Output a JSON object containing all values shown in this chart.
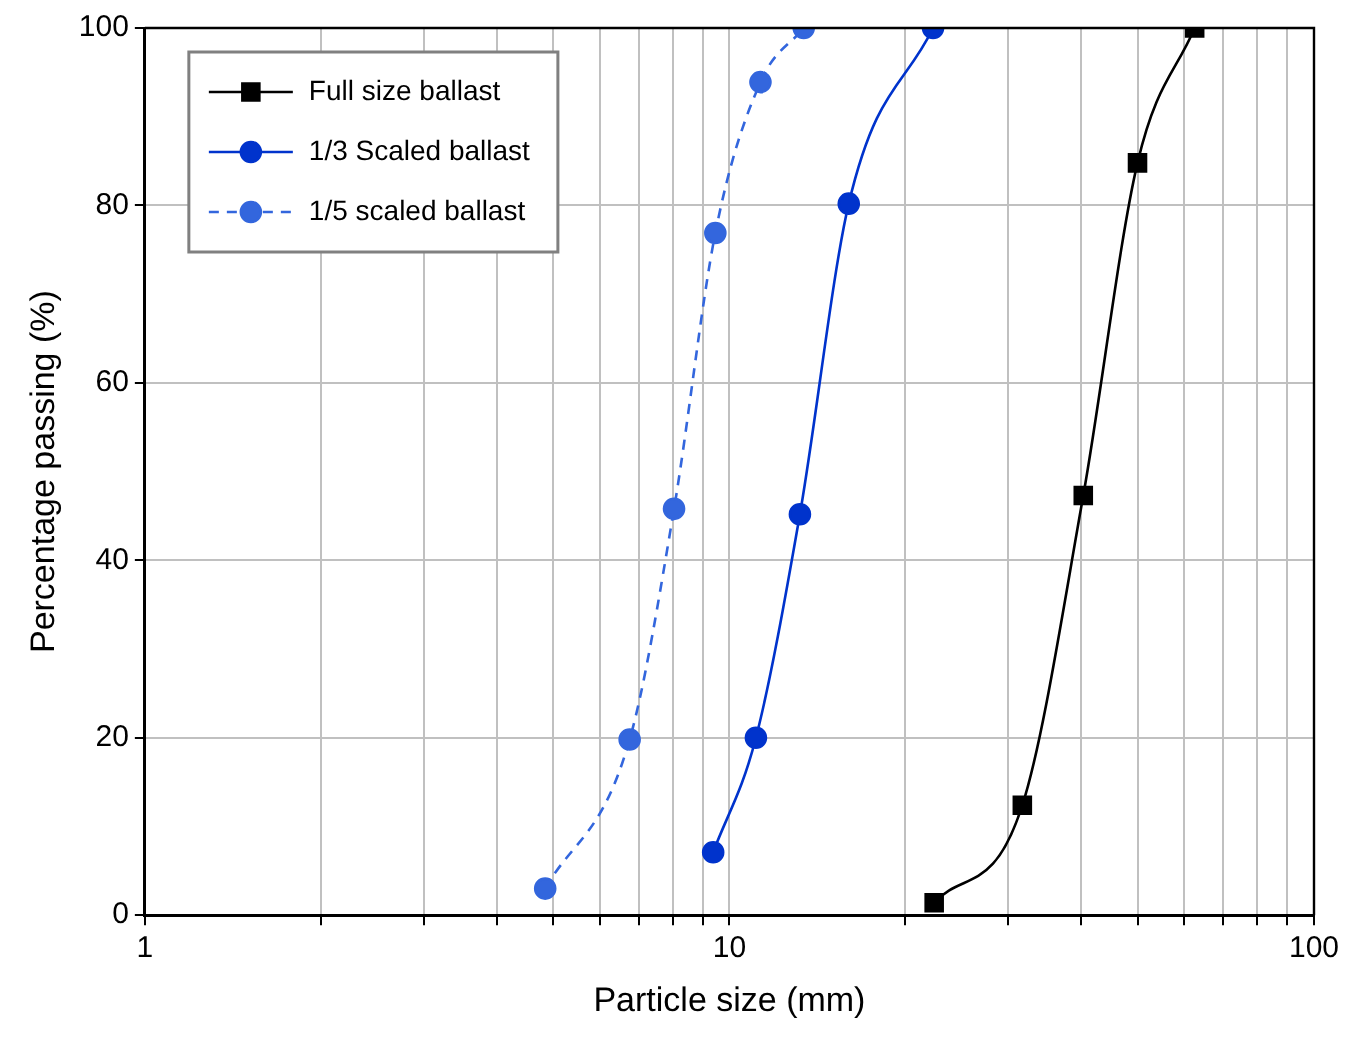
{
  "chart_data": {
    "type": "line",
    "xlabel": "Particle size (mm)",
    "ylabel": "Percentage passing (%)",
    "log": "x",
    "xlim": [
      1,
      100
    ],
    "ylim": [
      0,
      100
    ],
    "xticks": [
      1,
      {
        "value": 2,
        "label": null
      },
      {
        "value": 3,
        "label": null
      },
      {
        "value": 4,
        "label": null
      },
      {
        "value": 5,
        "label": null
      },
      {
        "value": 6,
        "label": null
      },
      {
        "value": 7,
        "label": null
      },
      {
        "value": 8,
        "label": null
      },
      {
        "value": 9,
        "label": null
      },
      10,
      {
        "value": 20,
        "label": null
      },
      {
        "value": 30,
        "label": null
      },
      {
        "value": 40,
        "label": null
      },
      {
        "value": 50,
        "label": null
      },
      {
        "value": 60,
        "label": null
      },
      {
        "value": 70,
        "label": null
      },
      {
        "value": 80,
        "label": null
      },
      {
        "value": 90,
        "label": null
      },
      100
    ],
    "yticks": [
      0,
      20,
      40,
      60,
      80,
      100
    ],
    "grid": true,
    "legend": "top left",
    "series": [
      {
        "name": "Full size ballast",
        "color": "#000000",
        "marker": "square",
        "line_style": "solid",
        "x": [
          22.4,
          31.7,
          40.3,
          49.9,
          62.5
        ],
        "values": [
          1.4,
          12.4,
          47.3,
          84.8,
          100
        ]
      },
      {
        "name": "1/3 Scaled ballast",
        "color": "#0033cc",
        "marker": "circle",
        "line_style": "solid",
        "x": [
          9.38,
          11.1,
          13.2,
          16.0,
          22.3
        ],
        "values": [
          7.1,
          20,
          45.2,
          80.2,
          100
        ]
      },
      {
        "name": "1/5 scaled ballast",
        "color": "#3366dd",
        "marker": "circle",
        "line_style": "dashed",
        "x": [
          4.84,
          6.75,
          8.04,
          9.46,
          11.3,
          13.4
        ],
        "values": [
          3.0,
          19.8,
          45.8,
          76.9,
          93.9,
          100
        ]
      }
    ]
  }
}
